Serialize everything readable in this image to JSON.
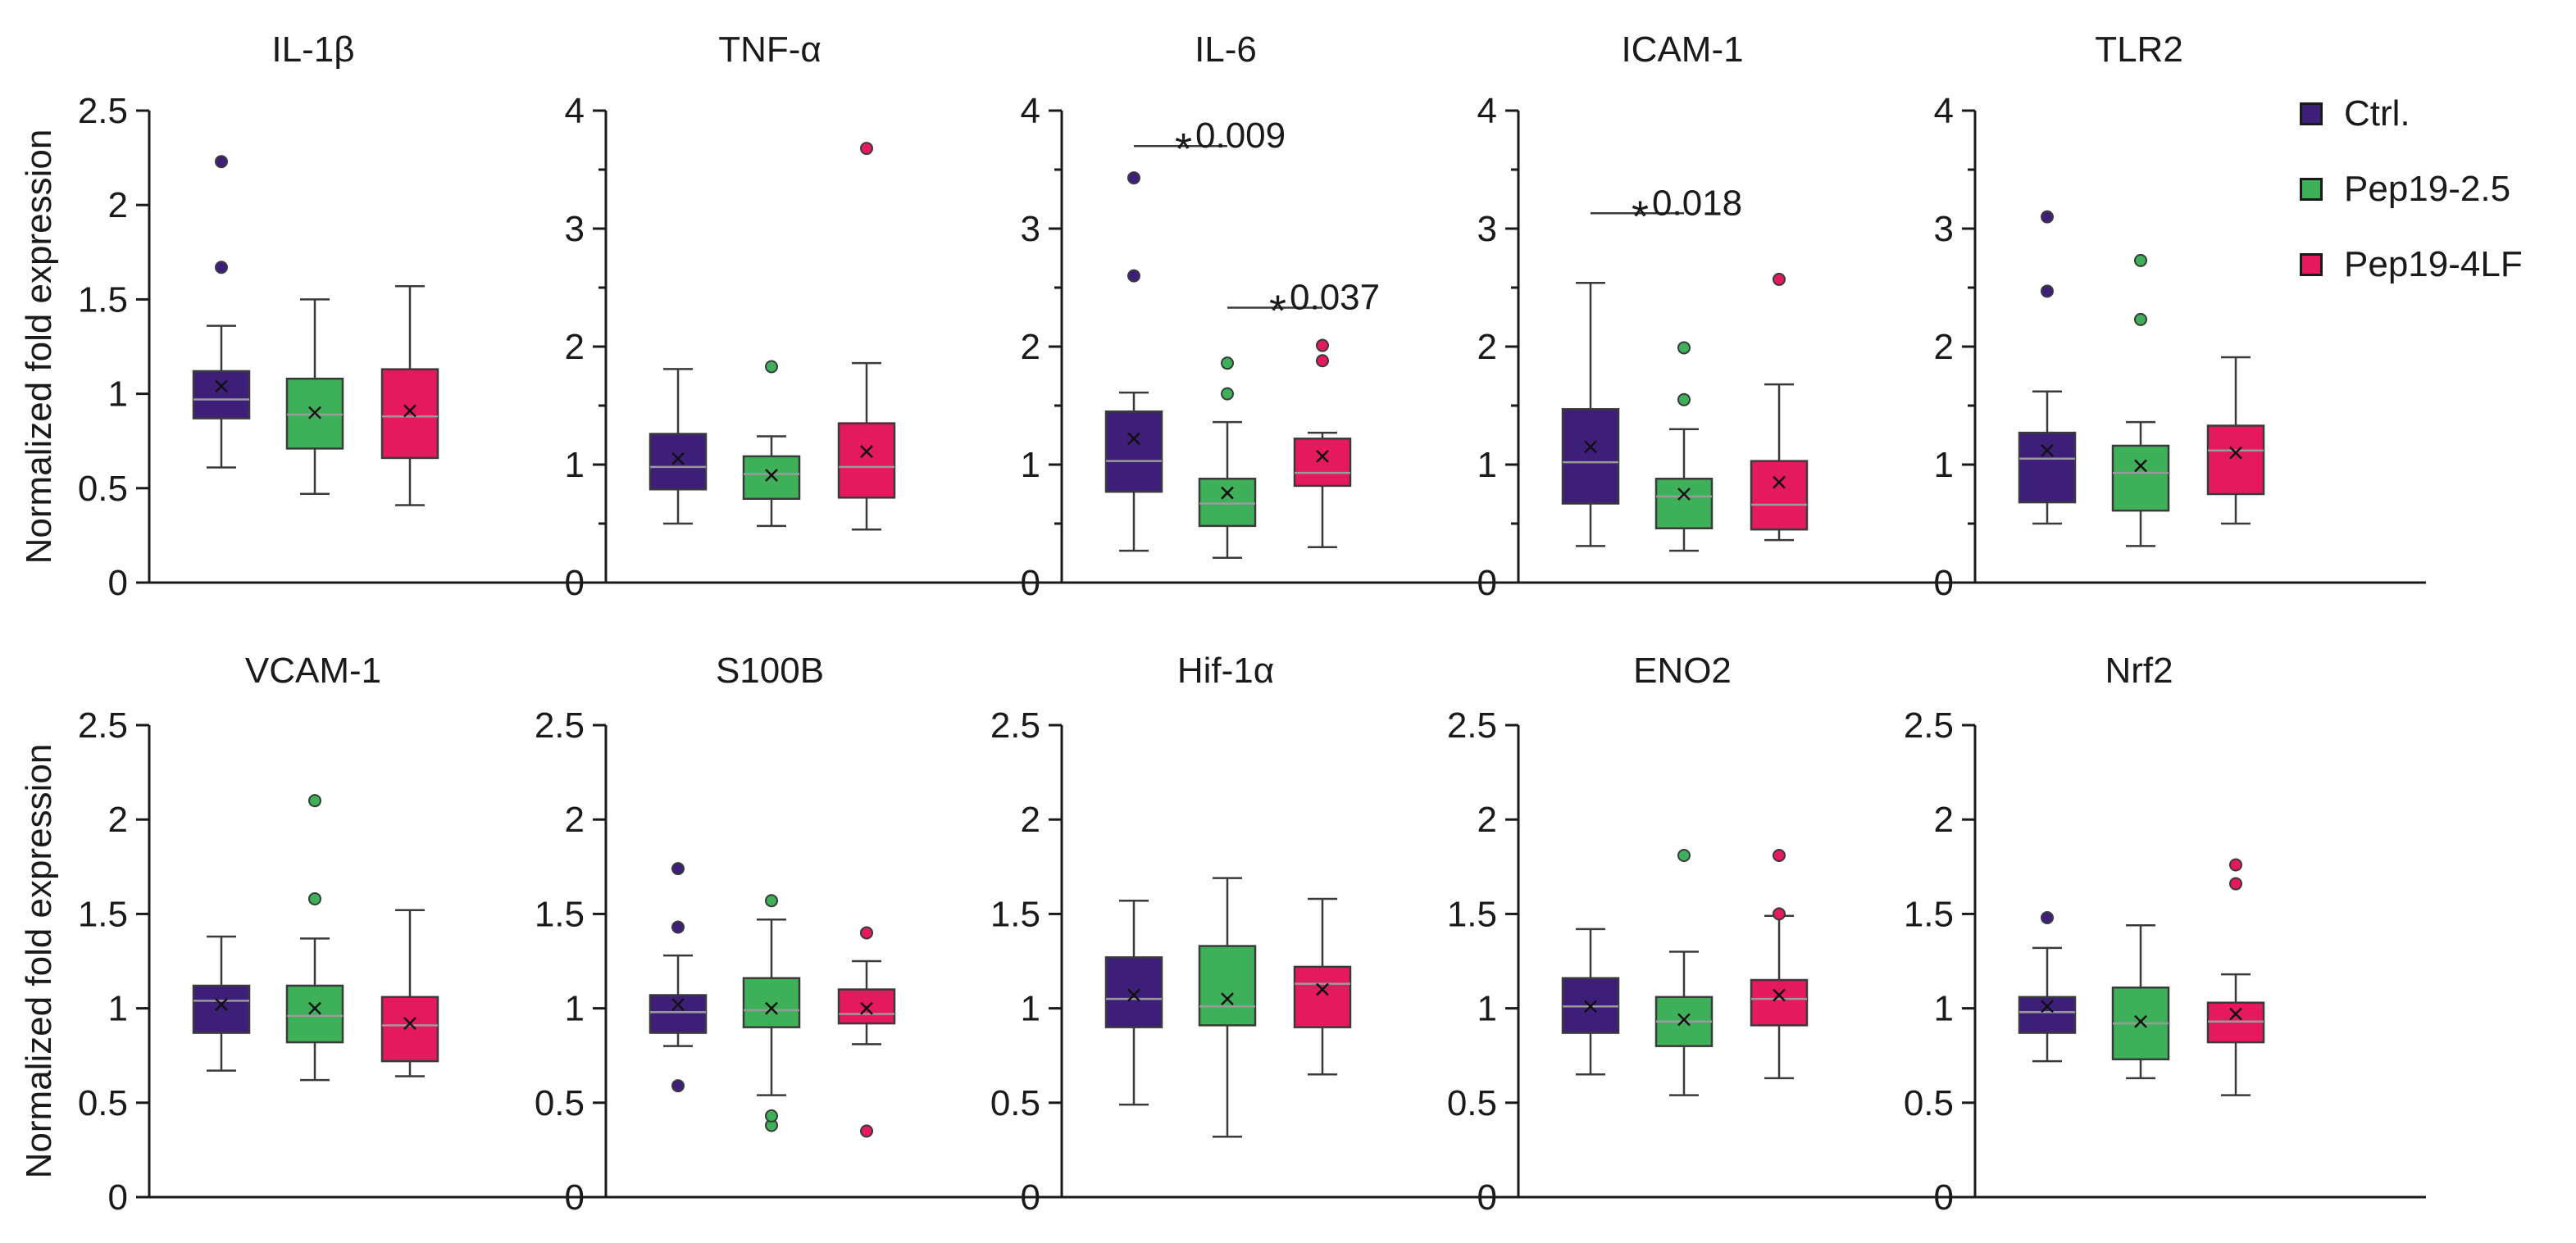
{
  "chart_data": {
    "type": "box",
    "ylabel": "Normalized fold expression",
    "groups": [
      {
        "name": "Ctrl.",
        "color": "#3d1f7a"
      },
      {
        "name": "Pep19-2.5",
        "color": "#3fb05a"
      },
      {
        "name": "Pep19-4LF",
        "color": "#e5195d"
      }
    ],
    "panels": [
      {
        "title": "IL-1β",
        "ylim": [
          0,
          2.5
        ],
        "yticks": [
          "0",
          "0.5",
          "1",
          "1.5",
          "2",
          "2.5"
        ],
        "boxes": [
          {
            "group": "Ctrl.",
            "min": 0.61,
            "q1": 0.87,
            "median": 0.97,
            "q3": 1.12,
            "max": 1.36,
            "mean": 1.04,
            "outliers": [
              1.67,
              2.23
            ]
          },
          {
            "group": "Pep19-2.5",
            "min": 0.47,
            "q1": 0.71,
            "median": 0.89,
            "q3": 1.08,
            "max": 1.5,
            "mean": 0.9,
            "outliers": []
          },
          {
            "group": "Pep19-4LF",
            "min": 0.41,
            "q1": 0.66,
            "median": 0.88,
            "q3": 1.13,
            "max": 1.57,
            "mean": 0.91,
            "outliers": []
          }
        ],
        "annotations": []
      },
      {
        "title": "TNF-α",
        "ylim": [
          0,
          4
        ],
        "yticks": [
          "0",
          "1",
          "2",
          "3",
          "4"
        ],
        "boxes": [
          {
            "group": "Ctrl.",
            "min": 0.5,
            "q1": 0.79,
            "median": 0.98,
            "q3": 1.26,
            "max": 1.81,
            "mean": 1.05,
            "outliers": []
          },
          {
            "group": "Pep19-2.5",
            "min": 0.48,
            "q1": 0.71,
            "median": 0.92,
            "q3": 1.07,
            "max": 1.24,
            "mean": 0.91,
            "outliers": [
              1.83
            ]
          },
          {
            "group": "Pep19-4LF",
            "min": 0.45,
            "q1": 0.72,
            "median": 0.98,
            "q3": 1.35,
            "max": 1.86,
            "mean": 1.11,
            "outliers": [
              3.68
            ]
          }
        ],
        "annotations": []
      },
      {
        "title": "IL-6",
        "ylim": [
          0,
          4
        ],
        "yticks": [
          "0",
          "1",
          "2",
          "3",
          "4"
        ],
        "boxes": [
          {
            "group": "Ctrl.",
            "min": 0.27,
            "q1": 0.77,
            "median": 1.03,
            "q3": 1.45,
            "max": 1.61,
            "mean": 1.22,
            "outliers": [
              2.6,
              3.43
            ]
          },
          {
            "group": "Pep19-2.5",
            "min": 0.21,
            "q1": 0.48,
            "median": 0.67,
            "q3": 0.88,
            "max": 1.36,
            "mean": 0.76,
            "outliers": [
              1.6,
              1.86
            ]
          },
          {
            "group": "Pep19-4LF",
            "min": 0.3,
            "q1": 0.82,
            "median": 0.93,
            "q3": 1.22,
            "max": 1.27,
            "mean": 1.07,
            "outliers": [
              1.88,
              2.01
            ]
          }
        ],
        "annotations": [
          {
            "from": "Ctrl.",
            "to": "Pep19-2.5",
            "y": 3.7,
            "label": "*",
            "p": "0.009"
          },
          {
            "from": "Pep19-2.5",
            "to": "Pep19-4LF",
            "y": 2.33,
            "label": "*",
            "p": "0.037"
          }
        ]
      },
      {
        "title": "ICAM-1",
        "ylim": [
          0,
          4
        ],
        "yticks": [
          "0",
          "1",
          "2",
          "3",
          "4"
        ],
        "boxes": [
          {
            "group": "Ctrl.",
            "min": 0.31,
            "q1": 0.67,
            "median": 1.02,
            "q3": 1.47,
            "max": 2.54,
            "mean": 1.15,
            "outliers": []
          },
          {
            "group": "Pep19-2.5",
            "min": 0.27,
            "q1": 0.46,
            "median": 0.73,
            "q3": 0.88,
            "max": 1.3,
            "mean": 0.75,
            "outliers": [
              1.55,
              1.99
            ]
          },
          {
            "group": "Pep19-4LF",
            "min": 0.36,
            "q1": 0.45,
            "median": 0.66,
            "q3": 1.03,
            "max": 1.68,
            "mean": 0.85,
            "outliers": [
              2.57
            ]
          }
        ],
        "annotations": [
          {
            "from": "Ctrl.",
            "to": "Pep19-2.5",
            "y": 3.13,
            "label": "*",
            "p": "0.018"
          }
        ]
      },
      {
        "title": "TLR2",
        "ylim": [
          0,
          4
        ],
        "yticks": [
          "0",
          "1",
          "2",
          "3",
          "4"
        ],
        "boxes": [
          {
            "group": "Ctrl.",
            "min": 0.5,
            "q1": 0.68,
            "median": 1.05,
            "q3": 1.27,
            "max": 1.62,
            "mean": 1.12,
            "outliers": [
              2.47,
              3.1
            ]
          },
          {
            "group": "Pep19-2.5",
            "min": 0.31,
            "q1": 0.61,
            "median": 0.93,
            "q3": 1.16,
            "max": 1.36,
            "mean": 0.99,
            "outliers": [
              2.23,
              2.73
            ]
          },
          {
            "group": "Pep19-4LF",
            "min": 0.5,
            "q1": 0.75,
            "median": 1.12,
            "q3": 1.33,
            "max": 1.91,
            "mean": 1.1,
            "outliers": []
          }
        ],
        "annotations": []
      },
      {
        "title": "VCAM-1",
        "ylim": [
          0,
          2.5
        ],
        "yticks": [
          "0",
          "0.5",
          "1",
          "1.5",
          "2",
          "2.5"
        ],
        "boxes": [
          {
            "group": "Ctrl.",
            "min": 0.67,
            "q1": 0.87,
            "median": 1.04,
            "q3": 1.12,
            "max": 1.38,
            "mean": 1.02,
            "outliers": []
          },
          {
            "group": "Pep19-2.5",
            "min": 0.62,
            "q1": 0.82,
            "median": 0.96,
            "q3": 1.12,
            "max": 1.37,
            "mean": 1.0,
            "outliers": [
              1.58,
              2.1
            ]
          },
          {
            "group": "Pep19-4LF",
            "min": 0.64,
            "q1": 0.72,
            "median": 0.91,
            "q3": 1.06,
            "max": 1.52,
            "mean": 0.92,
            "outliers": []
          }
        ],
        "annotations": []
      },
      {
        "title": "S100B",
        "ylim": [
          0,
          2.5
        ],
        "yticks": [
          "0",
          "0.5",
          "1",
          "1.5",
          "2",
          "2.5"
        ],
        "boxes": [
          {
            "group": "Ctrl.",
            "min": 0.8,
            "q1": 0.87,
            "median": 0.98,
            "q3": 1.07,
            "max": 1.28,
            "mean": 1.02,
            "outliers": [
              0.59,
              1.43,
              1.74
            ]
          },
          {
            "group": "Pep19-2.5",
            "min": 0.54,
            "q1": 0.9,
            "median": 0.99,
            "q3": 1.16,
            "max": 1.47,
            "mean": 1.0,
            "outliers": [
              0.38,
              0.43,
              1.57
            ]
          },
          {
            "group": "Pep19-4LF",
            "min": 0.81,
            "q1": 0.92,
            "median": 0.97,
            "q3": 1.1,
            "max": 1.25,
            "mean": 1.0,
            "outliers": [
              0.35,
              1.4
            ]
          }
        ],
        "annotations": []
      },
      {
        "title": "Hif-1α",
        "ylim": [
          0,
          2.5
        ],
        "yticks": [
          "0",
          "0.5",
          "1",
          "1.5",
          "2",
          "2.5"
        ],
        "boxes": [
          {
            "group": "Ctrl.",
            "min": 0.49,
            "q1": 0.9,
            "median": 1.05,
            "q3": 1.27,
            "max": 1.57,
            "mean": 1.07,
            "outliers": []
          },
          {
            "group": "Pep19-2.5",
            "min": 0.32,
            "q1": 0.91,
            "median": 1.01,
            "q3": 1.33,
            "max": 1.69,
            "mean": 1.05,
            "outliers": []
          },
          {
            "group": "Pep19-4LF",
            "min": 0.65,
            "q1": 0.9,
            "median": 1.13,
            "q3": 1.22,
            "max": 1.58,
            "mean": 1.1,
            "outliers": []
          }
        ],
        "annotations": []
      },
      {
        "title": "ENO2",
        "ylim": [
          0,
          2.5
        ],
        "yticks": [
          "0",
          "0.5",
          "1",
          "1.5",
          "2",
          "2.5"
        ],
        "boxes": [
          {
            "group": "Ctrl.",
            "min": 0.65,
            "q1": 0.87,
            "median": 1.01,
            "q3": 1.16,
            "max": 1.42,
            "mean": 1.01,
            "outliers": []
          },
          {
            "group": "Pep19-2.5",
            "min": 0.54,
            "q1": 0.8,
            "median": 0.93,
            "q3": 1.06,
            "max": 1.3,
            "mean": 0.94,
            "outliers": [
              1.81
            ]
          },
          {
            "group": "Pep19-4LF",
            "min": 0.63,
            "q1": 0.91,
            "median": 1.05,
            "q3": 1.15,
            "max": 1.49,
            "mean": 1.07,
            "outliers": [
              1.5,
              1.81
            ]
          }
        ],
        "annotations": []
      },
      {
        "title": "Nrf2",
        "ylim": [
          0,
          2.5
        ],
        "yticks": [
          "0",
          "0.5",
          "1",
          "1.5",
          "2",
          "2.5"
        ],
        "boxes": [
          {
            "group": "Ctrl.",
            "min": 0.72,
            "q1": 0.87,
            "median": 0.98,
            "q3": 1.06,
            "max": 1.32,
            "mean": 1.01,
            "outliers": [
              1.48
            ]
          },
          {
            "group": "Pep19-2.5",
            "min": 0.63,
            "q1": 0.73,
            "median": 0.92,
            "q3": 1.11,
            "max": 1.44,
            "mean": 0.93,
            "outliers": []
          },
          {
            "group": "Pep19-4LF",
            "min": 0.54,
            "q1": 0.82,
            "median": 0.93,
            "q3": 1.03,
            "max": 1.18,
            "mean": 0.97,
            "outliers": [
              1.66,
              1.76
            ]
          }
        ],
        "annotations": []
      }
    ]
  },
  "legend": {
    "items": [
      {
        "label": "Ctrl.",
        "color": "#3d1f7a"
      },
      {
        "label": "Pep19-2.5",
        "color": "#3fb05a"
      },
      {
        "label": "Pep19-4LF",
        "color": "#e5195d"
      }
    ]
  }
}
